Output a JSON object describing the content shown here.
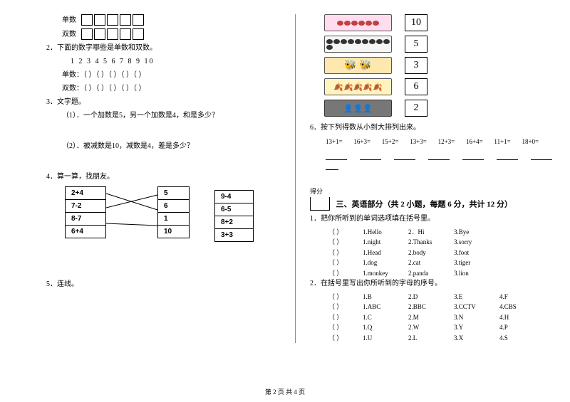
{
  "left": {
    "odd_label": "单数",
    "even_label": "双数",
    "q2": "2．下面的数字哪些是单数和双数。",
    "q2_nums": "1  2  3  4  5  6  7  8  9  10",
    "q2_odd": "单数：（  ）（  ）（  ）（  ）（  ）",
    "q2_even": "双数：（  ）（  ）（  ）（  ）（  ）",
    "q3": "3．文字题。",
    "q3_1": "（1）．一个加数是5，另一个加数是4，和是多少？",
    "q3_2": "（2）．被减数是10，减数是4，差是多少？",
    "q4": "4．算一算，找朋友。",
    "friend_c1": [
      "2+4",
      "7-2",
      "8-7",
      "6+4"
    ],
    "friend_c2": [
      "5",
      "6",
      "1",
      "10"
    ],
    "friend_c3": [
      "9-4",
      "6-5",
      "8+2",
      "3+3"
    ],
    "q5": "5．连线。"
  },
  "right": {
    "match_nums": [
      "10",
      "5",
      "3",
      "6",
      "2"
    ],
    "pic_colors": [
      "#c14040",
      "#e8e8e8",
      "#d99030",
      "#d4b030",
      "#888888"
    ],
    "q6": "6．按下列得数从小到大排列出来。",
    "q6_expr": "13+1=       16+3=       15+2=       13+3=       12+3=       16+4=       11+1=       18+0=",
    "score_label": "得分",
    "section3": "三、英语部分（共 2 小题，每题 6 分，共计 12 分）",
    "eng_q1": "1．把你所听到的单词选项填在括号里。",
    "eng1_rows": [
      [
        "（   ）",
        "1.Hello",
        "2．Hi",
        "3.Bye",
        ""
      ],
      [
        "（   ）",
        "1.night",
        "2.Thanks",
        "3.sorry",
        ""
      ],
      [
        "（   ）",
        "1.Head",
        "2.body",
        "3.foot",
        ""
      ],
      [
        "（   ）",
        "1.dog",
        "2.cat",
        "3.tiger",
        ""
      ],
      [
        "（   ）",
        "1.monkey",
        "2.panda",
        "3.lion",
        ""
      ]
    ],
    "eng_q2": "2．在括号里写出你所听到的字母的序号。",
    "eng2_rows": [
      [
        "（   ）",
        "1.B",
        "2.D",
        "3.E",
        "4.F"
      ],
      [
        "（   ）",
        "1.ABC",
        "2.BBC",
        "3.CCTV",
        "4.CBS"
      ],
      [
        "（   ）",
        "1.C",
        "2.M",
        "3.N",
        "4.H"
      ],
      [
        "（   ）",
        "1.Q",
        "2.W",
        "3.Y",
        "4.P"
      ],
      [
        "（   ）",
        "1.U",
        "2.L",
        "3.X",
        "4.S"
      ]
    ]
  },
  "footer": "第 2 页  共 4 页"
}
